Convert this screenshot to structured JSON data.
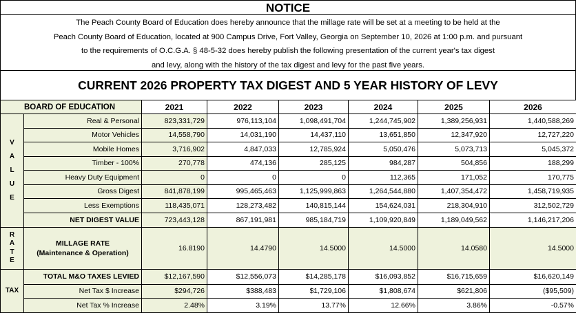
{
  "notice": {
    "heading": "NOTICE",
    "lines": [
      "The Peach County Board of Education does hereby announce that the millage rate will be set at a meeting to be held at the",
      "Peach County Board of Education, located at 900 Campus Drive, Fort Valley, Georgia on September 10, 2026 at 1:00 p.m. and pursuant",
      "to the requirements of O.C.G.A. § 48-5-32 does hereby publish the following presentation of the current year's tax digest",
      "and levy, along with the history of the tax digest and levy for the past five years."
    ]
  },
  "table_title": "CURRENT 2026 PROPERTY TAX DIGEST AND 5 YEAR HISTORY OF LEVY",
  "header": {
    "board": "BOARD OF EDUCATION",
    "years": [
      "2021",
      "2022",
      "2023",
      "2024",
      "2025",
      "2026"
    ]
  },
  "side_labels": {
    "value": [
      "V",
      "A",
      "L",
      "U",
      "E"
    ],
    "rate": [
      "R",
      "A",
      "T",
      "E"
    ],
    "tax": "TAX"
  },
  "value_rows": [
    {
      "label": "Real & Personal",
      "values": [
        "823,331,729",
        "976,113,104",
        "1,098,491,704",
        "1,244,745,902",
        "1,389,256,931",
        "1,440,588,269"
      ]
    },
    {
      "label": "Motor Vehicles",
      "values": [
        "14,558,790",
        "14,031,190",
        "14,437,110",
        "13,651,850",
        "12,347,920",
        "12,727,220"
      ]
    },
    {
      "label": "Mobile Homes",
      "values": [
        "3,716,902",
        "4,847,033",
        "12,785,924",
        "5,050,476",
        "5,073,713",
        "5,045,372"
      ]
    },
    {
      "label": "Timber - 100%",
      "values": [
        "270,778",
        "474,136",
        "285,125",
        "984,287",
        "504,856",
        "188,299"
      ]
    },
    {
      "label": "Heavy Duty Equipment",
      "values": [
        "0",
        "0",
        "0",
        "112,365",
        "171,052",
        "170,775"
      ]
    },
    {
      "label": "Gross Digest",
      "values": [
        "841,878,199",
        "995,465,463",
        "1,125,999,863",
        "1,264,544,880",
        "1,407,354,472",
        "1,458,719,935"
      ]
    },
    {
      "label": "Less Exemptions",
      "values": [
        "118,435,071",
        "128,273,482",
        "140,815,144",
        "154,624,031",
        "218,304,910",
        "312,502,729"
      ]
    },
    {
      "label": "NET DIGEST VALUE",
      "values": [
        "723,443,128",
        "867,191,981",
        "985,184,719",
        "1,109,920,849",
        "1,189,049,562",
        "1,146,217,206"
      ]
    }
  ],
  "millage": {
    "label_line1": "MILLAGE RATE",
    "label_line2": "(Maintenance & Operation)",
    "values": [
      "16.8190",
      "14.4790",
      "14.5000",
      "14.5000",
      "14.0580",
      "14.5000"
    ]
  },
  "tax_rows": [
    {
      "label": "TOTAL M&O TAXES LEVIED",
      "values": [
        "$12,167,590",
        "$12,556,073",
        "$14,285,178",
        "$16,093,852",
        "$16,715,659",
        "$16,620,149"
      ]
    },
    {
      "label": "Net Tax $ Increase",
      "values": [
        "$294,726",
        "$388,483",
        "$1,729,106",
        "$1,808,674",
        "$621,806",
        "($95,509)"
      ]
    },
    {
      "label": "Net Tax % Increase",
      "values": [
        "2.48%",
        "3.19%",
        "13.77%",
        "12.66%",
        "3.86%",
        "-0.57%"
      ]
    }
  ],
  "colors": {
    "cell_tint": "#eef2dc",
    "border": "#000000"
  }
}
